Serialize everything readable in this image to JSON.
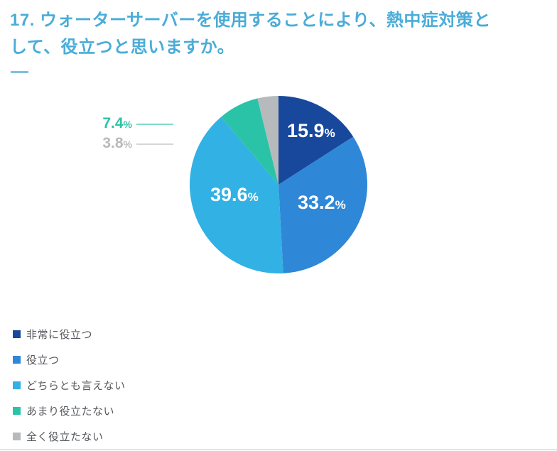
{
  "header": {
    "title_line1": "17. ウォーターサーバーを使用することにより、熱中症対策と",
    "title_line2": "して、役立つと思いますか。"
  },
  "chart_data": {
    "type": "pie",
    "title": "17. ウォーターサーバーを使用することにより、熱中症対策として、役立つと思いますか。",
    "percent_symbol": "%",
    "start_angle_deg": -90,
    "direction": "clockwise",
    "legend_position": "bottom-left",
    "slices": [
      {
        "label": "非常に役立つ",
        "value": 15.9,
        "color": "#17489B",
        "label_placement": "inside"
      },
      {
        "label": "役立つ",
        "value": 33.2,
        "color": "#2F87D7",
        "label_placement": "inside"
      },
      {
        "label": "どちらとも言えない",
        "value": 39.6,
        "color": "#32B1E4",
        "label_placement": "inside"
      },
      {
        "label": "あまり役立たない",
        "value": 7.4,
        "color": "#2BC3A7",
        "label_placement": "callout-left"
      },
      {
        "label": "全く役立たない",
        "value": 3.8,
        "color": "#B7BABD",
        "label_placement": "callout-left"
      }
    ]
  },
  "colors": {
    "title_text": "#4AACD8",
    "title_dash": "#7CC2E2",
    "legend_text": "#55585C",
    "inside_label_text": "#FFFFFF",
    "divider": "#E2E3E4",
    "background": "#FFFFFF"
  }
}
